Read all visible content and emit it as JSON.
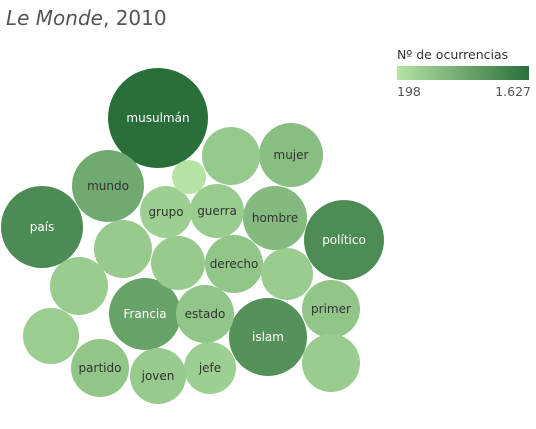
{
  "title_italic": "Le Monde",
  "title_rest": ", 2010",
  "legend": {
    "title": "Nº de ocurrencias",
    "min_label": "198",
    "max_label": "1.627",
    "min": 198,
    "max": 1627,
    "color_low": "#b5e3a4",
    "color_high": "#2a6f3a"
  },
  "chart_data": {
    "type": "bubble",
    "title": "Le Monde, 2010",
    "legend_title": "Nº de ocurrencias",
    "value_range": [
      198,
      1627
    ],
    "bubbles": [
      {
        "label": "musulmán",
        "value": 1627
      },
      {
        "label": "país",
        "value": 1280
      },
      {
        "label": "político",
        "value": 1270
      },
      {
        "label": "islam",
        "value": 1190
      },
      {
        "label": "Francia",
        "value": 1000
      },
      {
        "label": "mundo",
        "value": 900
      },
      {
        "label": "hombre",
        "value": 700
      },
      {
        "label": "mujer",
        "value": 650
      },
      {
        "label": "primer",
        "value": 560
      },
      {
        "label": "derecho",
        "value": 560
      },
      {
        "label": "estado",
        "value": 560
      },
      {
        "label": "partido",
        "value": 560
      },
      {
        "label": "guerra",
        "value": 480
      },
      {
        "label": "jefe",
        "value": 450
      },
      {
        "label": "joven",
        "value": 510
      },
      {
        "label": "grupo",
        "value": 440
      },
      {
        "label": "",
        "value": 500
      },
      {
        "label": "",
        "value": 520
      },
      {
        "label": "",
        "value": 500
      },
      {
        "label": "",
        "value": 480
      },
      {
        "label": "",
        "value": 480
      },
      {
        "label": "",
        "value": 470
      },
      {
        "label": "",
        "value": 480
      },
      {
        "label": "",
        "value": 198
      }
    ]
  }
}
